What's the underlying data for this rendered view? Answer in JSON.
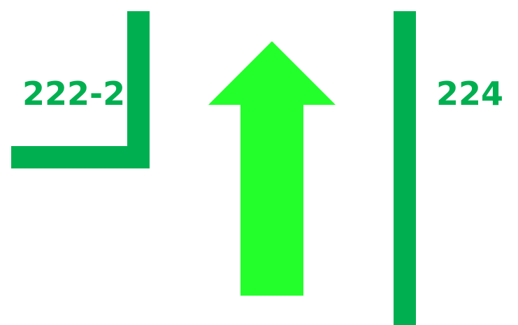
{
  "colors": {
    "background": "#ffffff",
    "marking": "#00b050",
    "arrow": "#22ff2a"
  },
  "labels": {
    "left_zone": "222-2",
    "right_zone": "224"
  },
  "icons": {
    "direction": "arrow-up-icon"
  }
}
